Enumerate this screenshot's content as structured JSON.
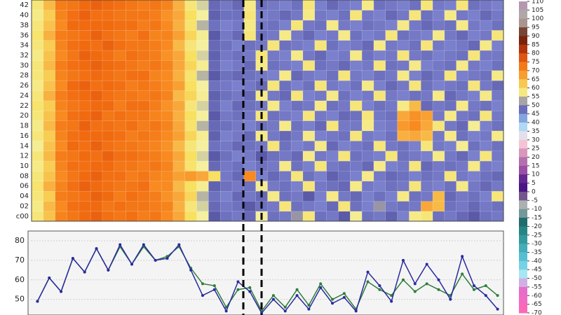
{
  "chart_data": [
    {
      "type": "heatmap",
      "rows": [
        "c00",
        "02",
        "04",
        "06",
        "08",
        "10",
        "12",
        "14",
        "16",
        "18",
        "20",
        "22",
        "24",
        "26",
        "28",
        "30",
        "32",
        "34",
        "36",
        "38",
        "40",
        "42"
      ],
      "values": [
        [
          58,
          63,
          71,
          73,
          75,
          76,
          74,
          73,
          74,
          72,
          73,
          70,
          66,
          60,
          55,
          50,
          47,
          46,
          48,
          55,
          47,
          46,
          52,
          58,
          47,
          46,
          50,
          56,
          47,
          46,
          49,
          45,
          57,
          58,
          47,
          46,
          48,
          50,
          47,
          46
        ],
        [
          57,
          64,
          70,
          74,
          75,
          75,
          73,
          74,
          73,
          73,
          72,
          71,
          65,
          58,
          54,
          48,
          46,
          47,
          50,
          47,
          46,
          58,
          47,
          46,
          45,
          48,
          58,
          47,
          45,
          52,
          46,
          47,
          46,
          66,
          64,
          47,
          46,
          48,
          46,
          47
        ],
        [
          58,
          62,
          72,
          73,
          74,
          76,
          75,
          72,
          74,
          73,
          72,
          69,
          66,
          61,
          53,
          47,
          45,
          48,
          46,
          48,
          57,
          47,
          46,
          50,
          45,
          57,
          46,
          48,
          45,
          47,
          45,
          57,
          47,
          46,
          64,
          48,
          46,
          47,
          45,
          58
        ],
        [
          59,
          65,
          71,
          74,
          76,
          75,
          74,
          73,
          73,
          74,
          70,
          70,
          64,
          60,
          56,
          49,
          47,
          46,
          47,
          56,
          46,
          47,
          45,
          58,
          46,
          47,
          48,
          57,
          46,
          45,
          47,
          46,
          58,
          46,
          45,
          47,
          57,
          46,
          48,
          46
        ],
        [
          58,
          63,
          70,
          73,
          75,
          76,
          74,
          74,
          72,
          73,
          71,
          70,
          67,
          68,
          66,
          60,
          46,
          48,
          70,
          45,
          48,
          46,
          58,
          47,
          45,
          49,
          47,
          45,
          57,
          46,
          48,
          47,
          45,
          47,
          46,
          58,
          46,
          45,
          47,
          48
        ],
        [
          57,
          62,
          71,
          74,
          74,
          75,
          75,
          73,
          73,
          72,
          73,
          71,
          65,
          59,
          55,
          48,
          46,
          47,
          45,
          47,
          46,
          57,
          47,
          45,
          58,
          46,
          47,
          46,
          48,
          57,
          45,
          46,
          58,
          48,
          46,
          47,
          46,
          57,
          46,
          45
        ],
        [
          58,
          64,
          72,
          73,
          75,
          74,
          76,
          74,
          74,
          73,
          72,
          70,
          66,
          60,
          54,
          50,
          47,
          45,
          46,
          50,
          47,
          46,
          48,
          57,
          46,
          45,
          58,
          47,
          46,
          45,
          58,
          47,
          46,
          45,
          57,
          46,
          48,
          45,
          58,
          46
        ],
        [
          56,
          63,
          70,
          75,
          74,
          76,
          74,
          73,
          73,
          72,
          71,
          69,
          64,
          58,
          55,
          47,
          46,
          48,
          47,
          46,
          58,
          47,
          45,
          46,
          57,
          48,
          45,
          46,
          47,
          58,
          46,
          47,
          45,
          58,
          46,
          45,
          56,
          47,
          45,
          47
        ],
        [
          58,
          62,
          71,
          74,
          75,
          75,
          75,
          74,
          72,
          73,
          72,
          70,
          67,
          61,
          56,
          49,
          45,
          46,
          48,
          57,
          46,
          48,
          46,
          57,
          45,
          46,
          47,
          58,
          46,
          45,
          47,
          65,
          66,
          64,
          46,
          57,
          47,
          45,
          46,
          57
        ],
        [
          57,
          64,
          72,
          73,
          76,
          74,
          74,
          73,
          74,
          72,
          73,
          71,
          66,
          59,
          53,
          48,
          47,
          46,
          45,
          47,
          46,
          57,
          47,
          45,
          48,
          58,
          46,
          46,
          57,
          45,
          46,
          68,
          70,
          66,
          58,
          46,
          48,
          56,
          45,
          47
        ],
        [
          58,
          63,
          70,
          74,
          75,
          76,
          73,
          74,
          73,
          73,
          71,
          70,
          65,
          60,
          55,
          50,
          46,
          47,
          46,
          58,
          47,
          46,
          45,
          58,
          46,
          45,
          48,
          47,
          58,
          46,
          47,
          66,
          69,
          67,
          46,
          57,
          46,
          47,
          58,
          46
        ],
        [
          59,
          62,
          71,
          73,
          74,
          75,
          75,
          72,
          74,
          74,
          72,
          69,
          66,
          58,
          54,
          48,
          45,
          48,
          47,
          46,
          57,
          45,
          47,
          46,
          57,
          47,
          46,
          58,
          45,
          47,
          46,
          57,
          64,
          48,
          46,
          47,
          57,
          46,
          47,
          45
        ],
        [
          58,
          65,
          72,
          74,
          75,
          76,
          74,
          73,
          73,
          72,
          73,
          71,
          64,
          61,
          56,
          49,
          47,
          46,
          48,
          57,
          46,
          48,
          58,
          45,
          46,
          57,
          47,
          45,
          46,
          58,
          46,
          45,
          47,
          46,
          57,
          48,
          46,
          45,
          57,
          46
        ],
        [
          57,
          63,
          70,
          75,
          76,
          74,
          75,
          74,
          72,
          73,
          72,
          70,
          67,
          60,
          55,
          47,
          46,
          45,
          46,
          48,
          58,
          47,
          45,
          47,
          58,
          46,
          45,
          47,
          57,
          45,
          48,
          46,
          58,
          47,
          45,
          46,
          47,
          58,
          46,
          48
        ],
        [
          58,
          62,
          71,
          73,
          74,
          75,
          74,
          73,
          74,
          74,
          71,
          70,
          65,
          59,
          53,
          50,
          47,
          48,
          47,
          46,
          45,
          57,
          48,
          46,
          45,
          47,
          58,
          46,
          45,
          47,
          46,
          57,
          45,
          48,
          46,
          58,
          45,
          46,
          47,
          57
        ],
        [
          58,
          64,
          72,
          74,
          75,
          76,
          75,
          74,
          73,
          72,
          73,
          71,
          66,
          61,
          56,
          48,
          45,
          46,
          48,
          57,
          47,
          46,
          45,
          58,
          47,
          46,
          48,
          45,
          46,
          58,
          47,
          46,
          57,
          45,
          46,
          47,
          57,
          46,
          45,
          47
        ],
        [
          57,
          63,
          70,
          73,
          76,
          75,
          74,
          72,
          74,
          73,
          72,
          69,
          66,
          60,
          54,
          49,
          46,
          47,
          46,
          58,
          46,
          45,
          57,
          46,
          48,
          45,
          46,
          57,
          47,
          45,
          46,
          58,
          46,
          47,
          45,
          46,
          47,
          58,
          46,
          46
        ],
        [
          58,
          62,
          71,
          74,
          75,
          74,
          76,
          74,
          73,
          73,
          72,
          70,
          64,
          58,
          55,
          48,
          47,
          45,
          47,
          46,
          58,
          47,
          46,
          45,
          58,
          47,
          45,
          46,
          48,
          57,
          46,
          45,
          47,
          58,
          46,
          45,
          46,
          48,
          57,
          45
        ],
        [
          59,
          65,
          72,
          73,
          74,
          76,
          74,
          73,
          72,
          74,
          71,
          71,
          67,
          61,
          56,
          50,
          46,
          48,
          58,
          47,
          46,
          57,
          46,
          48,
          45,
          46,
          57,
          47,
          45,
          46,
          58,
          47,
          46,
          45,
          57,
          46,
          48,
          45,
          46,
          58
        ],
        [
          58,
          63,
          70,
          75,
          75,
          75,
          75,
          74,
          74,
          72,
          73,
          70,
          65,
          59,
          53,
          47,
          45,
          46,
          57,
          46,
          47,
          45,
          58,
          46,
          47,
          57,
          46,
          45,
          47,
          46,
          45,
          57,
          46,
          48,
          46,
          47,
          57,
          46,
          45,
          47
        ],
        [
          57,
          62,
          71,
          74,
          76,
          74,
          74,
          73,
          73,
          73,
          72,
          69,
          66,
          60,
          55,
          49,
          47,
          47,
          58,
          45,
          46,
          48,
          46,
          57,
          46,
          45,
          47,
          58,
          46,
          45,
          48,
          46,
          58,
          47,
          45,
          57,
          46,
          45,
          48,
          46
        ],
        [
          58,
          64,
          72,
          73,
          75,
          76,
          75,
          74,
          73,
          72,
          73,
          71,
          65,
          58,
          54,
          48,
          46,
          48,
          57,
          47,
          46,
          45,
          47,
          58,
          45,
          48,
          46,
          45,
          57,
          47,
          46,
          45,
          47,
          58,
          46,
          45,
          58,
          47,
          46,
          45
        ]
      ],
      "colorscale": [
        [
          -70,
          "#ff66b2"
        ],
        [
          -55,
          "#e070d0"
        ],
        [
          -50,
          "#c0f0f8"
        ],
        [
          -40,
          "#60c8e0"
        ],
        [
          -25,
          "#2a9090"
        ],
        [
          -15,
          "#1f5f5f"
        ],
        [
          -10,
          "#c8d0d0"
        ],
        [
          -5,
          "#909090"
        ],
        [
          0,
          "#5a1a8a"
        ],
        [
          5,
          "#3a1080"
        ],
        [
          10,
          "#8a3ea0"
        ],
        [
          20,
          "#c080b0"
        ],
        [
          25,
          "#f0b0c8"
        ],
        [
          30,
          "#f5d8e0"
        ],
        [
          35,
          "#d0e8f8"
        ],
        [
          40,
          "#90c8f0"
        ],
        [
          45,
          "#7a80cc"
        ],
        [
          50,
          "#5a5aa8"
        ],
        [
          55,
          "#f4f0a0"
        ],
        [
          60,
          "#f8e060"
        ],
        [
          65,
          "#f8b040"
        ],
        [
          70,
          "#f88a20"
        ],
        [
          75,
          "#f06a10"
        ],
        [
          80,
          "#d04010"
        ],
        [
          85,
          "#902808"
        ],
        [
          90,
          "#602010"
        ],
        [
          95,
          "#906a5a"
        ],
        [
          100,
          "#c0c0c0"
        ],
        [
          105,
          "#a09090"
        ],
        [
          110,
          "#c8a0d0"
        ]
      ],
      "colorbar_ticks": [
        110,
        105,
        100,
        95,
        90,
        85,
        80,
        75,
        70,
        65,
        60,
        55,
        50,
        45,
        40,
        35,
        30,
        25,
        20,
        15,
        10,
        5,
        0,
        -5,
        -10,
        -15,
        -20,
        -25,
        -30,
        -35,
        -40,
        -45,
        -50,
        -55,
        -60,
        -65,
        -70
      ]
    },
    {
      "type": "line",
      "ylim": [
        42,
        85
      ],
      "yticks": [
        50,
        60,
        70,
        80
      ],
      "grid": true,
      "series": [
        {
          "color": "#2e7d3a",
          "values": [
            49,
            61,
            54,
            71,
            64,
            76,
            65,
            77,
            68,
            77,
            70,
            72,
            77,
            66,
            58,
            57,
            46,
            55,
            56,
            44,
            52,
            46,
            55,
            47,
            58,
            50,
            53,
            45,
            59,
            55,
            52,
            60,
            54,
            58,
            55,
            52,
            63,
            55,
            57,
            52
          ]
        },
        {
          "color": "#2a2aa0",
          "values": [
            49,
            61,
            54,
            71,
            64,
            76,
            65,
            78,
            68,
            78,
            70,
            71,
            78,
            65,
            52,
            55,
            44,
            59,
            54,
            43,
            50,
            44,
            52,
            45,
            56,
            48,
            51,
            44,
            64,
            57,
            49,
            70,
            58,
            68,
            60,
            50,
            72,
            57,
            52,
            45
          ]
        }
      ]
    }
  ]
}
